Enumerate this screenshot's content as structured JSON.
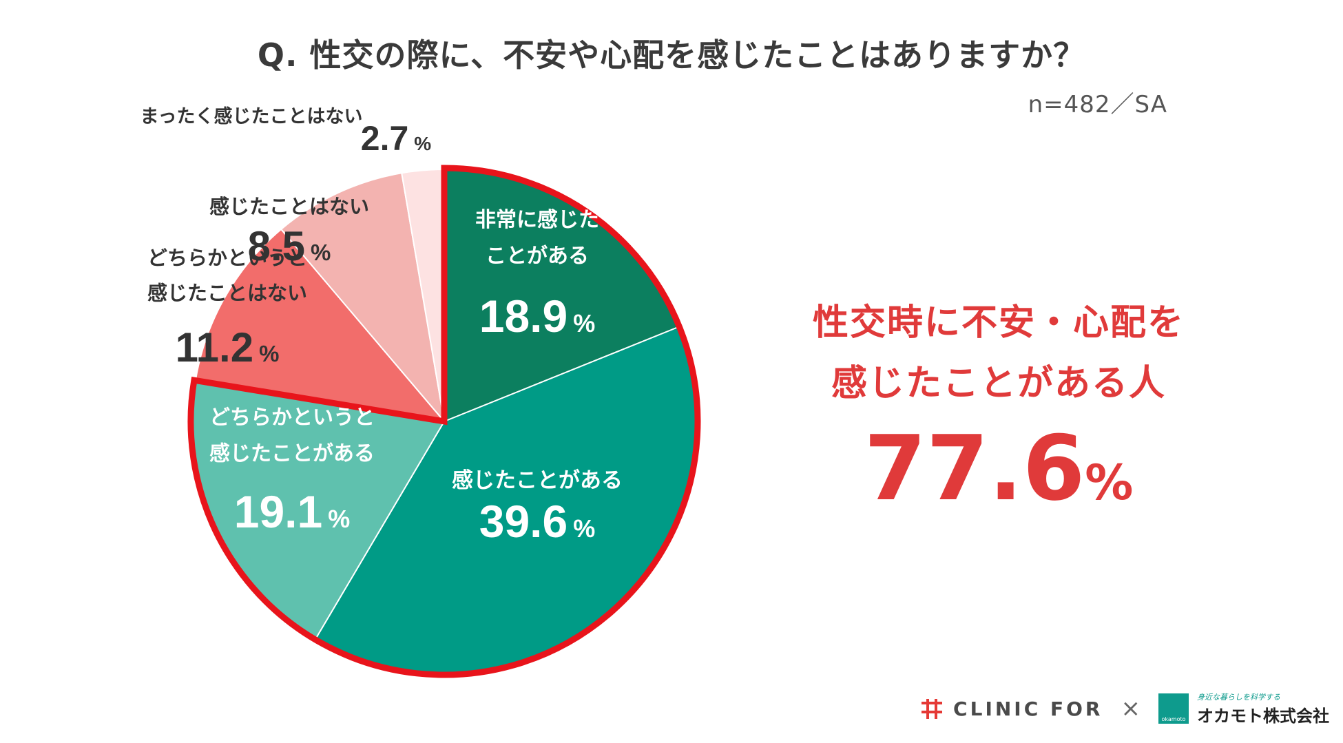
{
  "title": "Q.  性交の際に、不安や心配を感じたことはありますか？",
  "sample_note": "n=482／SA",
  "chart_data": {
    "type": "pie",
    "title": "Q.  性交の際に、不安や心配を感じたことはありますか？",
    "unit": "%",
    "slices": [
      {
        "label_lines": [
          "非常に感じた",
          "ことがある"
        ],
        "value": 18.9,
        "display": "18.9",
        "color": "#0c7f5f",
        "text_color": "#ffffff",
        "highlighted": true
      },
      {
        "label_lines": [
          "感じたことがある"
        ],
        "value": 39.6,
        "display": "39.6",
        "color": "#009b86",
        "text_color": "#ffffff",
        "highlighted": true
      },
      {
        "label_lines": [
          "どちらかというと",
          "感じたことがある"
        ],
        "value": 19.1,
        "display": "19.1",
        "color": "#5fc1ae",
        "text_color": "#ffffff",
        "highlighted": true
      },
      {
        "label_lines": [
          "どちらかというと",
          "感じたことはない"
        ],
        "value": 11.2,
        "display": "11.2",
        "color": "#f26d6b",
        "text_color": "#333333",
        "highlighted": false
      },
      {
        "label_lines": [
          "感じたことはない"
        ],
        "value": 8.5,
        "display": "8.5",
        "color": "#f3b3b0",
        "text_color": "#333333",
        "highlighted": false
      },
      {
        "label_lines": [
          "まったく感じたことはない"
        ],
        "value": 2.7,
        "display": "2.7",
        "color": "#fde2e2",
        "text_color": "#333333",
        "highlighted": false
      }
    ],
    "highlight_border_color": "#e8141b"
  },
  "highlight": {
    "line1": "性交時に不安・心配を",
    "line2": "感じたことがある人",
    "value": "77.6",
    "unit": "%"
  },
  "footer": {
    "brand1": "CLINIC FOR",
    "times": "×",
    "brand2_tag": "身近な暮らしを科学する",
    "brand2_name": "オカモト株式会社",
    "brand2_logo": "okamoto"
  }
}
